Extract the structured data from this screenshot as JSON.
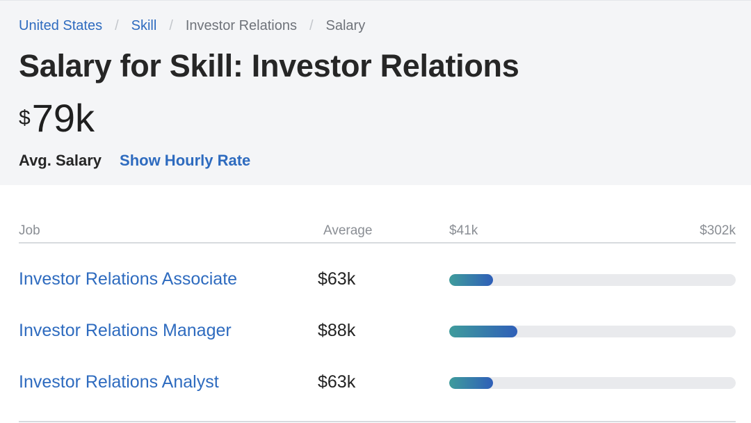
{
  "breadcrumb": [
    {
      "label": "United States",
      "link": true
    },
    {
      "label": "Skill",
      "link": true
    },
    {
      "label": "Investor Relations",
      "link": false
    },
    {
      "label": "Salary",
      "link": false
    }
  ],
  "breadcrumb_separator": "/",
  "page_title": "Salary for Skill: Investor Relations",
  "avg_salary": {
    "currency": "$",
    "amount": "79k",
    "label": "Avg. Salary",
    "hourly_link": "Show Hourly Rate"
  },
  "table": {
    "headers": {
      "job": "Job",
      "average": "Average",
      "min": "$41k",
      "max": "$302k"
    },
    "range_min": 41,
    "range_max": 302,
    "rows": [
      {
        "job": "Investor Relations Associate",
        "average": "$63k",
        "value": 63
      },
      {
        "job": "Investor Relations Manager",
        "average": "$88k",
        "value": 88
      },
      {
        "job": "Investor Relations Analyst",
        "average": "$63k",
        "value": 63
      }
    ]
  },
  "colors": {
    "link": "#2e6bbf",
    "bar_start": "#3f9c9c",
    "bar_end": "#2f5fb8",
    "track": "#e9eaed",
    "header_bg": "#f4f5f7"
  }
}
